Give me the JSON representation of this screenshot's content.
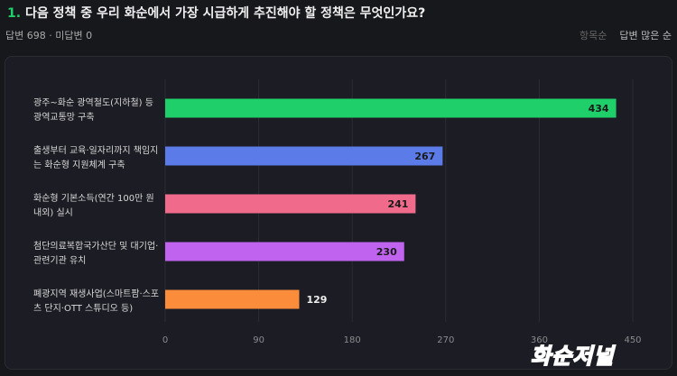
{
  "question": {
    "number": "1.",
    "text": "다음 정책 중 우리 화순에서 가장 시급하게 추진해야 할 정책은 무엇인가요?"
  },
  "meta": {
    "answered": "답변 698",
    "separator": "·",
    "unanswered": "미답변 0"
  },
  "sort": {
    "by_item": "항목순",
    "by_answers": "답변 많은 순"
  },
  "watermark": "화순저널",
  "chart_data": {
    "type": "bar",
    "orientation": "horizontal",
    "categories": [
      [
        "광주~화순 광역철도(지하철) 등",
        "광역교통망 구축"
      ],
      [
        "출생부터 교육·일자리까지 책임지",
        "는 화순형 지원체계 구축"
      ],
      [
        "화순형 기본소득(연간 100만 원",
        "내외) 실시"
      ],
      [
        "첨단의료복합국가산단 및 대기업·",
        "관련기관 유치"
      ],
      [
        "폐광지역 재생사업(스마트팜·스포",
        "츠 단지·OTT 스튜디오 등)"
      ]
    ],
    "values": [
      434,
      267,
      241,
      230,
      129
    ],
    "colors": [
      "#1fcf6a",
      "#5a7be8",
      "#f06a8c",
      "#c064f0",
      "#fb8c3c"
    ],
    "xlim": [
      0,
      450
    ],
    "xticks": [
      0,
      90,
      180,
      270,
      360,
      450
    ],
    "grid": true
  }
}
